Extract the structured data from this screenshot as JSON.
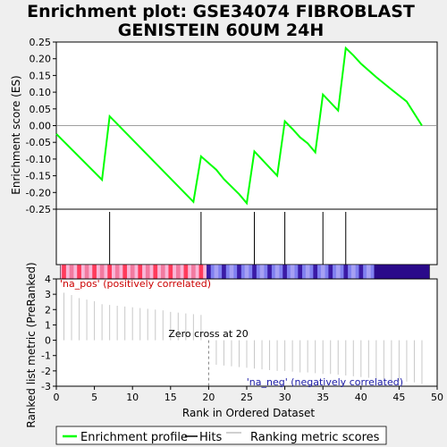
{
  "chart_data": {
    "type": "line",
    "title": [
      "Enrichment plot: GSE34074 FIBROBLAST",
      "GENISTEIN 60UM 24H"
    ],
    "xlabel": "Rank in Ordered Dataset",
    "es_ylabel": "Enrichment score (ES)",
    "metric_ylabel": "Ranked list metric (PreRanked)",
    "xlim": [
      0,
      50
    ],
    "x_ticks": [
      "0",
      "5",
      "10",
      "15",
      "20",
      "25",
      "30",
      "35",
      "40",
      "45",
      "50"
    ],
    "es_ylim": [
      -0.25,
      0.25
    ],
    "es_ticks": [
      "0.25",
      "0.20",
      "0.15",
      "0.10",
      "0.05",
      "0.00",
      "-0.05",
      "-0.10",
      "-0.15",
      "-0.20",
      "-0.25"
    ],
    "metric_ylim": [
      -3,
      4
    ],
    "metric_ticks": [
      "4",
      "3",
      "2",
      "1",
      "0",
      "-1",
      "-2",
      "-3"
    ],
    "enrichment_series": {
      "name": "Enrichment profile",
      "x": [
        0,
        6,
        7,
        18,
        19,
        21,
        22,
        24,
        25,
        26,
        29,
        30,
        31,
        32,
        33,
        34,
        35,
        37,
        38,
        39,
        40,
        42,
        44,
        46,
        48
      ],
      "y": [
        -0.025,
        -0.162,
        0.028,
        -0.228,
        -0.092,
        -0.132,
        -0.16,
        -0.205,
        -0.232,
        -0.077,
        -0.15,
        0.013,
        -0.01,
        -0.035,
        -0.053,
        -0.08,
        0.093,
        0.045,
        0.232,
        0.21,
        0.185,
        0.145,
        0.108,
        0.072,
        0.0
      ]
    },
    "hits": [
      7,
      19,
      26,
      30,
      35,
      38
    ],
    "metric_series": {
      "x": [
        1,
        2,
        3,
        4,
        5,
        6,
        7,
        8,
        9,
        10,
        11,
        12,
        13,
        14,
        15,
        16,
        17,
        18,
        19,
        20,
        21,
        22,
        23,
        24,
        25,
        26,
        27,
        28,
        29,
        30,
        31,
        32,
        33,
        34,
        35,
        36,
        37,
        38,
        39,
        40,
        41,
        42,
        43,
        44,
        45,
        46,
        47,
        48
      ],
      "y": [
        3.1,
        2.95,
        2.75,
        2.65,
        2.55,
        2.35,
        2.3,
        2.25,
        2.2,
        2.15,
        2.1,
        2.05,
        2.0,
        1.95,
        1.85,
        1.8,
        1.75,
        1.7,
        1.65,
        0,
        -1.6,
        -1.65,
        -1.7,
        -1.75,
        -1.8,
        -1.85,
        -1.9,
        -1.95,
        -2.0,
        -2.0,
        -2.05,
        -2.1,
        -2.1,
        -2.15,
        -2.2,
        -2.2,
        -2.25,
        -2.3,
        -2.35,
        -2.4,
        -2.45,
        -2.5,
        -2.55,
        -2.6,
        -2.65,
        -2.7,
        -2.75,
        -2.85
      ]
    },
    "zero_cross": 20,
    "zero_cross_label": "Zero cross at 20",
    "pos_label": "'na_pos' (positively correlated)",
    "neg_label": "'na_neg' (negatively correlated)",
    "legend": [
      {
        "name": "Enrichment profile",
        "color": "#00ff00"
      },
      {
        "name": "Hits",
        "color": "#000000"
      },
      {
        "name": "Ranking metric scores",
        "color": "#c0c0c0"
      }
    ],
    "colors": {
      "es_line": "#00ff00",
      "pos_text": "#cc0000",
      "neg_text": "#1a1aa6",
      "metric": "#c8c8c8",
      "pink_bar": "#f9b8d8",
      "red_mark": "#ff3b5c",
      "blue_mark": "#3a1aa6",
      "dark_blue": "#2a0a8a"
    }
  }
}
